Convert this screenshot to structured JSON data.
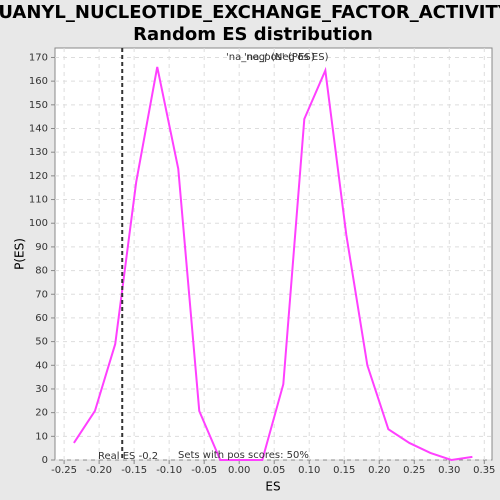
{
  "chart_data": {
    "type": "line",
    "title": [
      "GUANYL_NUCLEOTIDE_EXCHANGE_FACTOR_ACTIVITY:",
      "Random ES distribution"
    ],
    "x_label": "ES",
    "y_label": "P(ES)",
    "x": [
      -0.236,
      -0.206,
      -0.177,
      -0.147,
      -0.117,
      -0.087,
      -0.057,
      -0.027,
      0.003,
      0.033,
      0.063,
      0.093,
      0.123,
      0.153,
      0.183,
      0.213,
      0.243,
      0.273,
      0.303,
      0.333
    ],
    "series": [
      {
        "name": "'na_pos' (Pos ES)",
        "legend_color": "#4040ff",
        "color": "#ff40ff",
        "values": [
          7.2,
          20.7,
          49,
          117.5,
          166,
          123,
          20.7,
          0,
          0,
          0,
          32,
          144,
          164.5,
          95,
          40,
          13,
          7.2,
          3,
          0,
          1.3
        ]
      }
    ],
    "legend_extra": {
      "name": "'na_neg' (Neg ES)",
      "color": "#ff4040"
    },
    "real_es": {
      "value": -0.167,
      "label": "Real ES -0.2"
    },
    "annotation": "Sets with pos scores: 50%",
    "xlim": [
      -0.263,
      0.361
    ],
    "ylim": [
      0,
      174
    ],
    "xticks": [
      -0.25,
      {
        "value": -0.2,
        "label": "-0.20"
      },
      -0.15,
      {
        "value": -0.1,
        "label": "-0.10"
      },
      -0.05,
      {
        "value": 0,
        "label": "0.00"
      },
      0.05,
      {
        "value": 0.1,
        "label": "0.10"
      },
      0.15,
      {
        "value": 0.2,
        "label": "0.20"
      },
      0.25,
      {
        "value": 0.3,
        "label": "0.30"
      },
      0.35
    ],
    "yticks": [
      0,
      10,
      20,
      30,
      40,
      50,
      60,
      70,
      80,
      90,
      100,
      110,
      120,
      130,
      140,
      150,
      160,
      170
    ],
    "grid": true
  }
}
